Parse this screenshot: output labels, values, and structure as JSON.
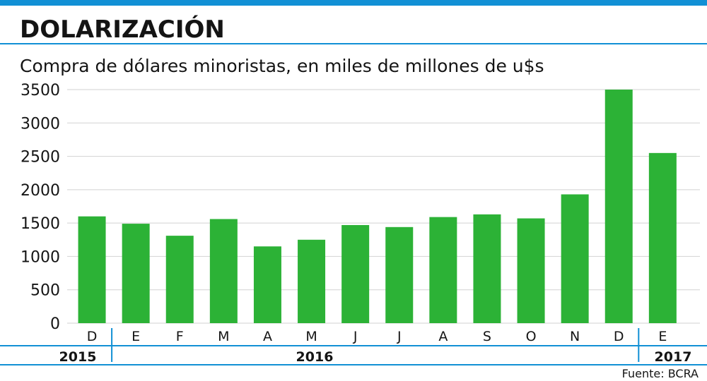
{
  "colors": {
    "accent": "#1190d5",
    "bar": "#2cb236",
    "grid": "#d2d2d2",
    "text": "#141414"
  },
  "chart_data": {
    "type": "bar",
    "title": "DOLARIZACIÓN",
    "subtitle": "Compra de dólares minoristas, en miles de millones de u$s",
    "categories": [
      "D",
      "E",
      "F",
      "M",
      "A",
      "M",
      "J",
      "J",
      "A",
      "S",
      "O",
      "N",
      "D",
      "E"
    ],
    "values": [
      1600,
      1490,
      1310,
      1560,
      1150,
      1250,
      1470,
      1440,
      1590,
      1630,
      1570,
      1930,
      3500,
      2550
    ],
    "ylim": [
      0,
      3500
    ],
    "yticks": [
      0,
      500,
      1000,
      1500,
      2000,
      2500,
      3000,
      3500
    ],
    "grid": true,
    "x_groups": [
      {
        "label": "2015",
        "span": 1
      },
      {
        "label": "2016",
        "span": 12
      },
      {
        "label": "2017",
        "span": 1
      }
    ]
  },
  "source": "Fuente: BCRA"
}
